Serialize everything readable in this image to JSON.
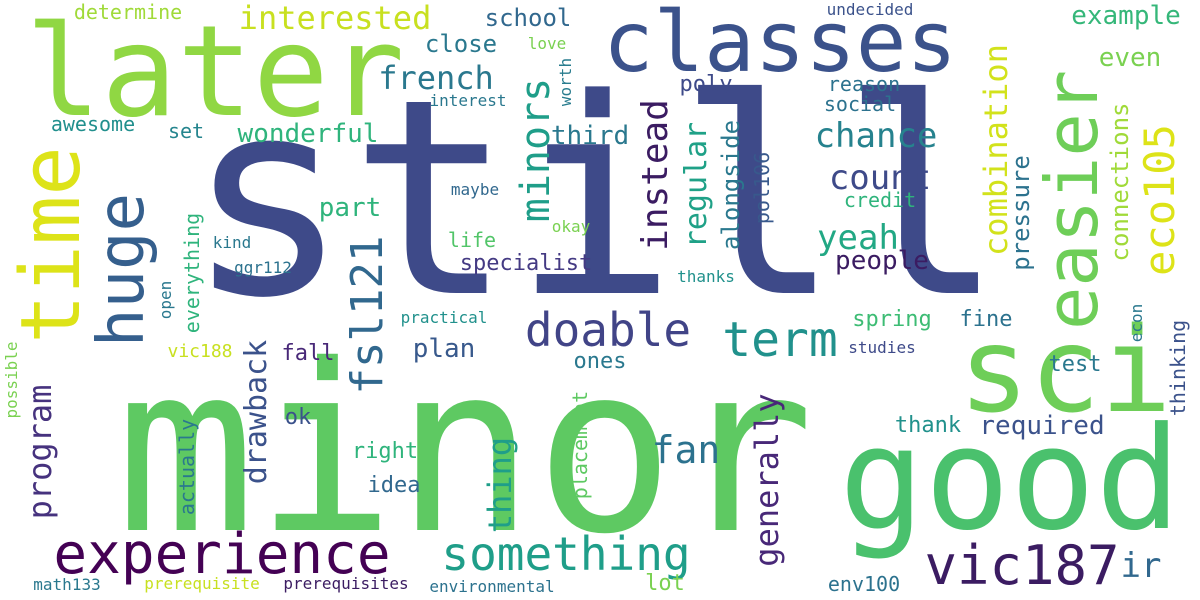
{
  "words": [
    {
      "text": "still",
      "color": "#3e4a89"
    },
    {
      "text": "minor",
      "color": "#5ec962"
    },
    {
      "text": "later",
      "color": "#90d743"
    },
    {
      "text": "classes",
      "color": "#3b528b"
    },
    {
      "text": "good",
      "color": "#4ac16d"
    },
    {
      "text": "sci",
      "color": "#6ece58"
    },
    {
      "text": "time",
      "color": "#dde318"
    },
    {
      "text": "huge",
      "color": "#355f8d"
    },
    {
      "text": "easier",
      "color": "#6ece58"
    },
    {
      "text": "experience",
      "color": "#440154"
    },
    {
      "text": "something",
      "color": "#1f9e89"
    },
    {
      "text": "vic187",
      "color": "#3b1c62"
    },
    {
      "text": "doable",
      "color": "#414487"
    },
    {
      "text": "term",
      "color": "#21918c"
    },
    {
      "text": "fsl121",
      "color": "#31688e"
    },
    {
      "text": "minors",
      "color": "#1f9e89"
    },
    {
      "text": "eco105",
      "color": "#dde318"
    },
    {
      "text": "combination",
      "color": "#d2e21b"
    },
    {
      "text": "interested",
      "color": "#c8e020"
    },
    {
      "text": "french",
      "color": "#2a788e"
    },
    {
      "text": "chance",
      "color": "#26828e"
    },
    {
      "text": "count",
      "color": "#3e4a89"
    },
    {
      "text": "yeah",
      "color": "#22a884"
    },
    {
      "text": "fan",
      "color": "#2c728e"
    },
    {
      "text": "instead",
      "color": "#3b1c62"
    },
    {
      "text": "regular",
      "color": "#1fa187"
    },
    {
      "text": "alongside",
      "color": "#2a788e"
    },
    {
      "text": "generally",
      "color": "#482878"
    },
    {
      "text": "thing",
      "color": "#1f9e89"
    },
    {
      "text": "program",
      "color": "#46327e"
    },
    {
      "text": "drawback",
      "color": "#3b528b"
    },
    {
      "text": "connections",
      "color": "#a0da39"
    },
    {
      "text": "pressure",
      "color": "#2c728e"
    },
    {
      "text": "school",
      "color": "#31688e"
    },
    {
      "text": "example",
      "color": "#35b779"
    },
    {
      "text": "close",
      "color": "#2a788e"
    },
    {
      "text": "wonderful",
      "color": "#2fb47c"
    },
    {
      "text": "even",
      "color": "#7ad151"
    },
    {
      "text": "third",
      "color": "#2a788e"
    },
    {
      "text": "part",
      "color": "#2fb47c"
    },
    {
      "text": "people",
      "color": "#3b1c62"
    },
    {
      "text": "specialist",
      "color": "#443a83"
    },
    {
      "text": "plan",
      "color": "#38598c"
    },
    {
      "text": "ir",
      "color": "#31688e"
    },
    {
      "text": "required",
      "color": "#3b528b"
    },
    {
      "text": "determine",
      "color": "#a0da39"
    },
    {
      "text": "awesome",
      "color": "#218f8d"
    },
    {
      "text": "poly",
      "color": "#3e4a89"
    },
    {
      "text": "reason",
      "color": "#2c728e"
    },
    {
      "text": "social",
      "color": "#2c728e"
    },
    {
      "text": "set",
      "color": "#25858e"
    },
    {
      "text": "undecided",
      "color": "#3b528b"
    },
    {
      "text": "love",
      "color": "#7ad151"
    },
    {
      "text": "interest",
      "color": "#2a788e"
    },
    {
      "text": "worth",
      "color": "#287c8e"
    },
    {
      "text": "maybe",
      "color": "#31688e"
    },
    {
      "text": "okay",
      "color": "#7ad151"
    },
    {
      "text": "credit",
      "color": "#2fb47c"
    },
    {
      "text": "pol106",
      "color": "#38598c"
    },
    {
      "text": "life",
      "color": "#52c569"
    },
    {
      "text": "kind",
      "color": "#2a788e"
    },
    {
      "text": "ggr112",
      "color": "#2c728e"
    },
    {
      "text": "thanks",
      "color": "#21918c"
    },
    {
      "text": "everything",
      "color": "#2fb47c"
    },
    {
      "text": "open",
      "color": "#2a788e"
    },
    {
      "text": "spring",
      "color": "#3dbc74"
    },
    {
      "text": "fine",
      "color": "#2c728e"
    },
    {
      "text": "practical",
      "color": "#21918c"
    },
    {
      "text": "vic188",
      "color": "#c8e020"
    },
    {
      "text": "fall",
      "color": "#482878"
    },
    {
      "text": "studies",
      "color": "#3e4a89"
    },
    {
      "text": "econ",
      "color": "#2a788e"
    },
    {
      "text": "test",
      "color": "#2a788e"
    },
    {
      "text": "ones",
      "color": "#2a788e"
    },
    {
      "text": "thinking",
      "color": "#3b528b"
    },
    {
      "text": "ok",
      "color": "#3b528b"
    },
    {
      "text": "possible",
      "color": "#7ad151"
    },
    {
      "text": "thank",
      "color": "#21918c"
    },
    {
      "text": "right",
      "color": "#2fb47c"
    },
    {
      "text": "idea",
      "color": "#31688e"
    },
    {
      "text": "placement",
      "color": "#5ec962"
    },
    {
      "text": "actually",
      "color": "#2a788e"
    },
    {
      "text": "math133",
      "color": "#2a788e"
    },
    {
      "text": "prerequisite",
      "color": "#c8e020"
    },
    {
      "text": "prerequisites",
      "color": "#3b1c62"
    },
    {
      "text": "environmental",
      "color": "#2c728e"
    },
    {
      "text": "lot",
      "color": "#7ad151"
    },
    {
      "text": "env100",
      "color": "#2c728e"
    }
  ]
}
